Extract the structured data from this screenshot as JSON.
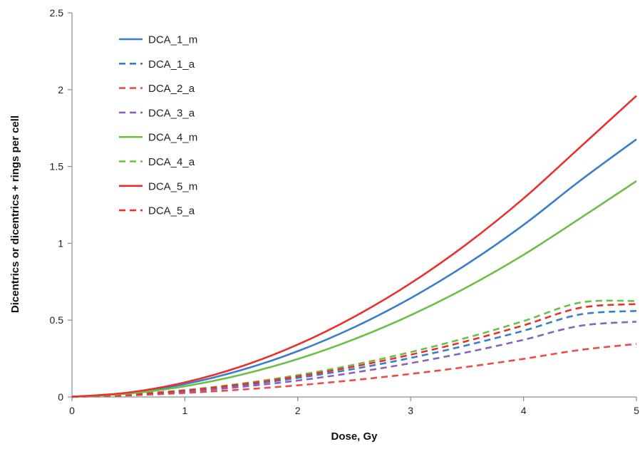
{
  "chart_data": {
    "type": "line",
    "title": "",
    "xlabel": "Dose, Gy",
    "ylabel": "Dicentrics or dicentrics + rings per cell",
    "xlim": [
      0,
      5
    ],
    "ylim": [
      0,
      2.5
    ],
    "xticks": [
      "0",
      "1",
      "2",
      "3",
      "4",
      "5"
    ],
    "yticks": [
      "0",
      "0.5",
      "1",
      "1.5",
      "2",
      "2.5"
    ],
    "grid": false,
    "legend_position": "top-left",
    "x": [
      0,
      0.5,
      1,
      1.5,
      2,
      2.5,
      3,
      3.5,
      4,
      4.5,
      5
    ],
    "series": [
      {
        "name": "DCA_1_m",
        "color": "#3a7dc9",
        "dash": "solid",
        "values": [
          0.001,
          0.026,
          0.084,
          0.175,
          0.298,
          0.454,
          0.643,
          0.865,
          1.12,
          1.407,
          1.677
        ]
      },
      {
        "name": "DCA_1_a",
        "color": "#3a7dc9",
        "dash": "dashed",
        "values": [
          0.001,
          0.014,
          0.039,
          0.076,
          0.124,
          0.183,
          0.254,
          0.337,
          0.431,
          0.537,
          0.56
        ]
      },
      {
        "name": "DCA_2_a",
        "color": "#ef4b4b",
        "dash": "dashed",
        "values": [
          0.001,
          0.01,
          0.026,
          0.048,
          0.076,
          0.11,
          0.15,
          0.196,
          0.248,
          0.306,
          0.345
        ]
      },
      {
        "name": "DCA_3_a",
        "color": "#8a63b8",
        "dash": "dashed",
        "values": [
          0.001,
          0.013,
          0.034,
          0.066,
          0.107,
          0.159,
          0.22,
          0.291,
          0.372,
          0.463,
          0.49
        ]
      },
      {
        "name": "DCA_4_m",
        "color": "#6cbf45",
        "dash": "solid",
        "values": [
          0.001,
          0.022,
          0.07,
          0.145,
          0.247,
          0.376,
          0.532,
          0.715,
          0.925,
          1.162,
          1.405
        ]
      },
      {
        "name": "DCA_4_a",
        "color": "#6cbf45",
        "dash": "dashed",
        "values": [
          0.001,
          0.016,
          0.045,
          0.087,
          0.142,
          0.21,
          0.292,
          0.386,
          0.494,
          0.614,
          0.625
        ]
      },
      {
        "name": "DCA_5_m",
        "color": "#e8302e",
        "dash": "solid",
        "values": [
          0.001,
          0.029,
          0.095,
          0.199,
          0.341,
          0.522,
          0.74,
          0.997,
          1.292,
          1.625,
          1.96
        ]
      },
      {
        "name": "DCA_5_a",
        "color": "#e8302e",
        "dash": "dashed",
        "values": [
          0.001,
          0.015,
          0.042,
          0.082,
          0.134,
          0.198,
          0.275,
          0.364,
          0.466,
          0.58,
          0.605
        ]
      }
    ]
  }
}
